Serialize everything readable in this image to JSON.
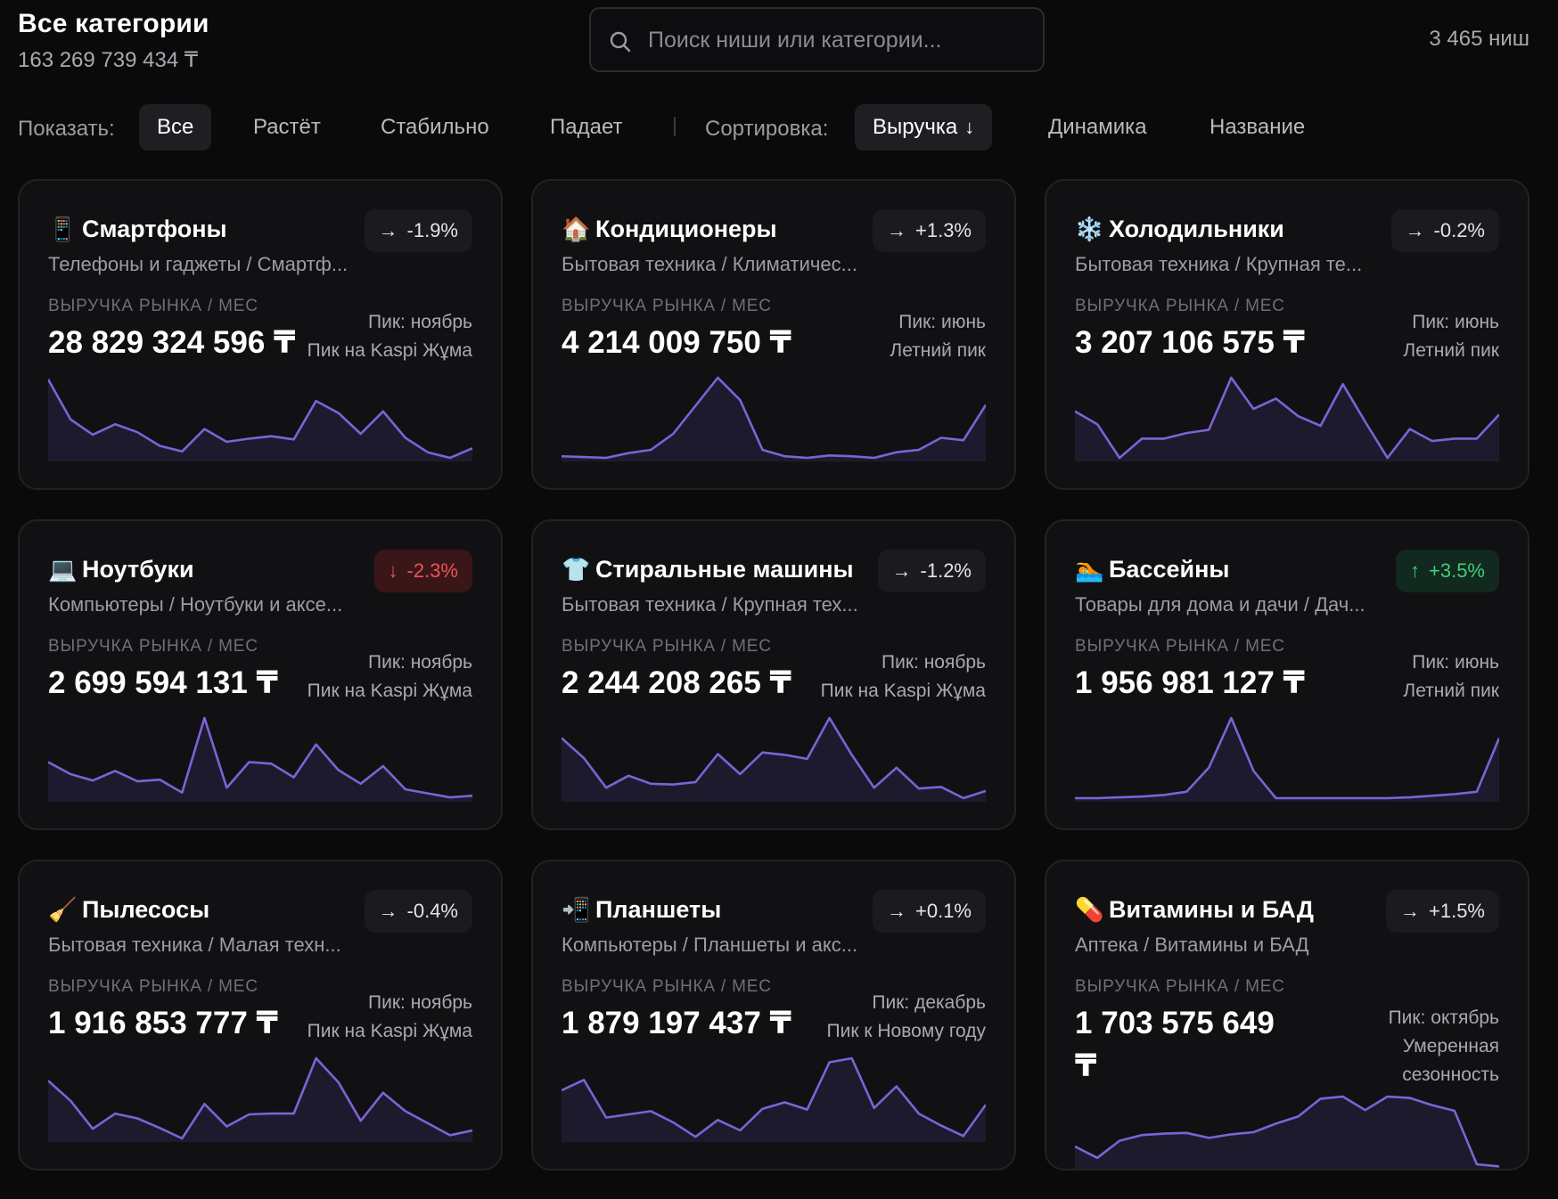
{
  "header": {
    "title": "Все категории",
    "total": "163 269 739 434 ₸",
    "search_placeholder": "Поиск ниши или категории...",
    "niche_count": "3 465 ниш"
  },
  "filters": {
    "show_label": "Показать:",
    "show_options": [
      "Все",
      "Растёт",
      "Стабильно",
      "Падает"
    ],
    "show_active": "Все",
    "sort_label": "Сортировка:",
    "sort_options": [
      "Выручка",
      "Динамика",
      "Название"
    ],
    "sort_active": "Выручка",
    "sort_arrow": "↓"
  },
  "colors": {
    "background": "#0a0a0b",
    "card": "#111113",
    "sparkline": "#7e62d6",
    "down": "#f0525a",
    "up": "#3fcf7a"
  },
  "revenue_label": "ВЫРУЧКА РЫНКА / МЕС",
  "cards": [
    {
      "emoji": "📱",
      "icon": "smartphone-icon",
      "title": "Смартфоны",
      "path": "Телефоны и гаджеты / Смартф...",
      "trend": "flat",
      "trend_arrow": "→",
      "change": "-1.9%",
      "revenue": "28 829 324 596 ₸",
      "peak_lines": [
        "Пик: ноябрь",
        "Пик на Kaspi Жұма"
      ],
      "spark": [
        0.98,
        0.48,
        0.29,
        0.42,
        0.32,
        0.15,
        0.08,
        0.36,
        0.2,
        0.24,
        0.27,
        0.23,
        0.71,
        0.56,
        0.3,
        0.58,
        0.25,
        0.07,
        0.0,
        0.12
      ]
    },
    {
      "emoji": "🏠",
      "icon": "house-icon",
      "title": "Кондиционеры",
      "path": "Бытовая техника / Климатичес...",
      "trend": "flat",
      "trend_arrow": "→",
      "change": "+1.3%",
      "revenue": "4 214 009 750 ₸",
      "peak_lines": [
        "Пик: июнь",
        "Летний пик"
      ],
      "spark": [
        0.02,
        0.01,
        0.0,
        0.06,
        0.1,
        0.3,
        0.65,
        1.0,
        0.72,
        0.1,
        0.02,
        0.0,
        0.03,
        0.02,
        0.0,
        0.07,
        0.1,
        0.25,
        0.22,
        0.66
      ]
    },
    {
      "emoji": "❄️",
      "icon": "snowflake-icon",
      "title": "Холодильники",
      "path": "Бытовая техника / Крупная те...",
      "trend": "flat",
      "trend_arrow": "→",
      "change": "-0.2%",
      "revenue": "3 207 106 575 ₸",
      "peak_lines": [
        "Пик: июнь",
        "Летний пик"
      ],
      "spark": [
        0.58,
        0.42,
        0.0,
        0.24,
        0.24,
        0.31,
        0.35,
        1.0,
        0.61,
        0.74,
        0.52,
        0.4,
        0.92,
        0.45,
        0.0,
        0.36,
        0.21,
        0.24,
        0.24,
        0.54
      ]
    },
    {
      "emoji": "💻",
      "icon": "laptop-icon",
      "title": "Ноутбуки",
      "path": "Компьютеры / Ноутбуки и аксе...",
      "trend": "down",
      "trend_arrow": "↓",
      "change": "-2.3%",
      "revenue": "2 699 594 131 ₸",
      "peak_lines": [
        "Пик: ноябрь",
        "Пик на Kaspi Жұма"
      ],
      "spark": [
        0.45,
        0.3,
        0.22,
        0.34,
        0.21,
        0.23,
        0.07,
        1.0,
        0.13,
        0.45,
        0.43,
        0.26,
        0.67,
        0.35,
        0.18,
        0.4,
        0.11,
        0.06,
        0.01,
        0.03
      ]
    },
    {
      "emoji": "👕",
      "icon": "shirt-icon",
      "title": "Стиральные машины",
      "path": "Бытовая техника / Крупная тех...",
      "trend": "flat",
      "trend_arrow": "→",
      "change": "-1.2%",
      "revenue": "2 244 208 265 ₸",
      "peak_lines": [
        "Пик: ноябрь",
        "Пик на Kaspi Жұма"
      ],
      "spark": [
        0.75,
        0.5,
        0.13,
        0.28,
        0.18,
        0.17,
        0.2,
        0.55,
        0.3,
        0.57,
        0.54,
        0.49,
        1.0,
        0.54,
        0.13,
        0.38,
        0.12,
        0.14,
        0.0,
        0.09
      ]
    },
    {
      "emoji": "🏊",
      "icon": "pool-icon",
      "title": "Бассейны",
      "path": "Товары для дома и дачи / Дач...",
      "trend": "up",
      "trend_arrow": "↑",
      "change": "+3.5%",
      "revenue": "1 956 981 127 ₸",
      "peak_lines": [
        "Пик: июнь",
        "Летний пик"
      ],
      "spark": [
        0.0,
        0.0,
        0.01,
        0.02,
        0.04,
        0.08,
        0.38,
        1.0,
        0.34,
        0.0,
        0.0,
        0.0,
        0.0,
        0.0,
        0.0,
        0.01,
        0.03,
        0.05,
        0.08,
        0.75
      ]
    },
    {
      "emoji": "🧹",
      "icon": "broom-icon",
      "title": "Пылесосы",
      "path": "Бытовая техника / Малая техн...",
      "trend": "flat",
      "trend_arrow": "→",
      "change": "-0.4%",
      "revenue": "1 916 853 777 ₸",
      "peak_lines": [
        "Пик: ноябрь",
        "Пик на Kaspi Жұма"
      ],
      "spark": [
        0.72,
        0.47,
        0.12,
        0.31,
        0.25,
        0.13,
        0.0,
        0.43,
        0.15,
        0.3,
        0.31,
        0.31,
        1.0,
        0.7,
        0.22,
        0.57,
        0.34,
        0.19,
        0.04,
        0.1
      ]
    },
    {
      "emoji": "📲",
      "icon": "tablet-icon",
      "title": "Планшеты",
      "path": "Компьютеры / Планшеты и акс...",
      "trend": "flat",
      "trend_arrow": "→",
      "change": "+0.1%",
      "revenue": "1 879 197 437 ₸",
      "peak_lines": [
        "Пик: декабрь",
        "Пик к Новому году"
      ],
      "spark": [
        0.6,
        0.73,
        0.26,
        0.3,
        0.34,
        0.2,
        0.02,
        0.23,
        0.1,
        0.37,
        0.45,
        0.36,
        0.95,
        1.0,
        0.38,
        0.65,
        0.31,
        0.16,
        0.03,
        0.42
      ]
    },
    {
      "emoji": "💊",
      "icon": "pill-icon",
      "title": "Витамины и БАД",
      "path": "Аптека / Витамины и БАД",
      "trend": "flat",
      "trend_arrow": "→",
      "change": "+1.5%",
      "revenue": "1 703 575 649 ₸",
      "peak_lines": [
        "Пик: октябрь",
        "Умеренная",
        "сезонность"
      ],
      "spark": [
        0.3,
        0.14,
        0.38,
        0.46,
        0.48,
        0.49,
        0.42,
        0.47,
        0.5,
        0.62,
        0.72,
        0.97,
        1.0,
        0.81,
        1.0,
        0.98,
        0.88,
        0.8,
        0.05,
        0.02
      ]
    }
  ]
}
